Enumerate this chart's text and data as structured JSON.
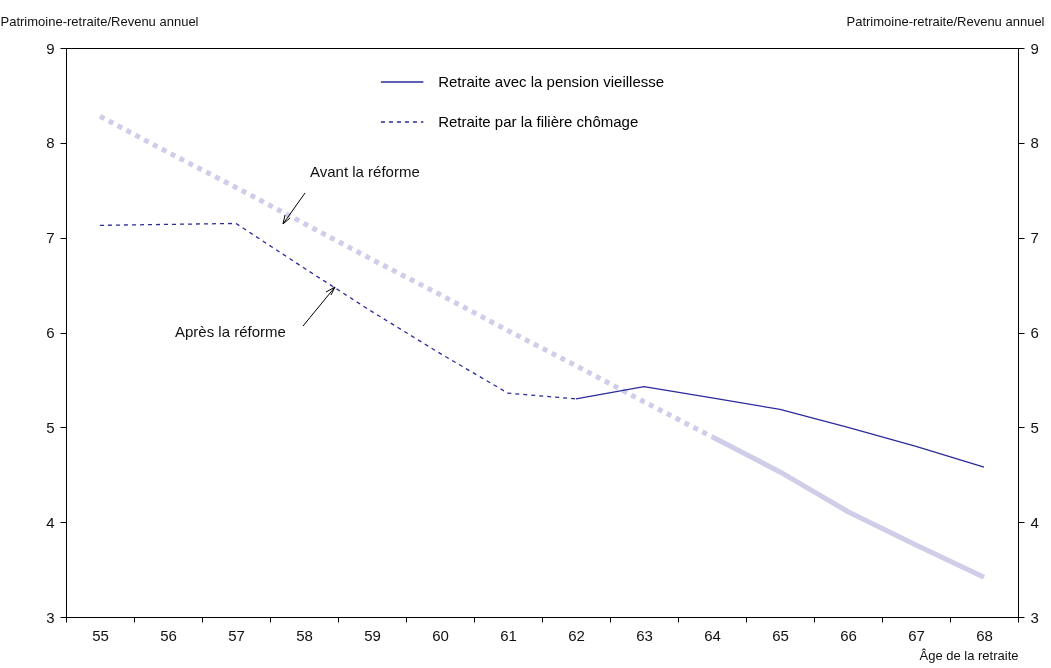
{
  "chart_data": {
    "type": "line",
    "xlabel": "Âge de la retraite",
    "ylabel": "Patrimoine-retraite/Revenu annuel",
    "y2label": "Patrimoine-retraite/Revenu annuel",
    "categories": [
      "55",
      "56",
      "57",
      "58",
      "59",
      "60",
      "61",
      "62",
      "63",
      "64",
      "65",
      "66",
      "67",
      "68"
    ],
    "series": [
      {
        "color": "#cfcde8",
        "line_style": "dotted",
        "values": [
          8.28,
          7.9,
          7.53,
          7.15,
          6.77,
          6.4,
          6.02,
          5.65,
          5.27,
          4.9,
          null,
          null,
          null,
          null
        ]
      },
      {
        "color": "#cfcde8",
        "line_style": "solid",
        "values": [
          null,
          null,
          null,
          null,
          null,
          null,
          null,
          null,
          null,
          4.9,
          4.53,
          4.11,
          3.76,
          3.42
        ]
      },
      {
        "name": "Retraite avec la pension vieillesse",
        "color": "#2b2b9b",
        "line_style": "solid",
        "values": [
          null,
          null,
          null,
          null,
          null,
          null,
          null,
          5.3,
          5.43,
          5.31,
          5.19,
          5.0,
          4.8,
          4.58
        ]
      },
      {
        "name": "Retraite par la filière chômage",
        "color": "#2b2b9b",
        "line_style": "dashed",
        "values": [
          7.13,
          7.14,
          7.15,
          6.68,
          6.22,
          5.78,
          5.36,
          5.3,
          null,
          null,
          null,
          null,
          null,
          null
        ]
      }
    ],
    "ylim": [
      3,
      9
    ],
    "yticks": [
      3,
      4,
      5,
      6,
      7,
      8,
      9
    ],
    "y2lim": [
      3,
      9
    ],
    "y2ticks": [
      3,
      4,
      5,
      6,
      7,
      8,
      9
    ],
    "legend": "top",
    "grid": false,
    "annotations": [
      "Avant la réforme",
      "Après la réforme"
    ]
  }
}
